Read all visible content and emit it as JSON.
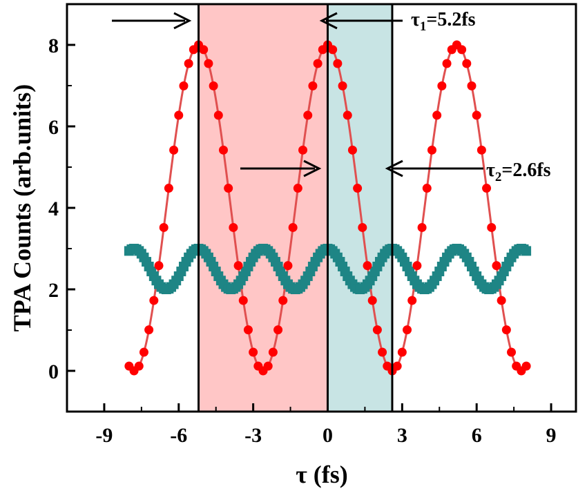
{
  "chart_data": {
    "type": "scatter",
    "xlabel": "τ (fs)",
    "ylabel": "TPA Counts (arb.units)",
    "xlim": [
      -10.5,
      10
    ],
    "ylim": [
      -1,
      9
    ],
    "xticks": [
      -9,
      -6,
      -3,
      0,
      3,
      6,
      9
    ],
    "xtick_labels": [
      "-9",
      "-6",
      "-3",
      "0",
      "3",
      "6",
      "9"
    ],
    "yticks": [
      0,
      2,
      4,
      6,
      8
    ],
    "ytick_labels": [
      "0",
      "2",
      "4",
      "6",
      "8"
    ],
    "grid": false,
    "series": [
      {
        "marker": "circle",
        "color": "#ff0000",
        "line_color": "#e05050",
        "period_fs": 5.2,
        "x_range": [
          -8,
          8
        ],
        "y_range": [
          0,
          8
        ],
        "step_fs": 0.2
      },
      {
        "marker": "square",
        "color": "#1e8585",
        "period_fs": 2.6,
        "x_range": [
          -8,
          8
        ],
        "y_range": [
          2,
          3
        ],
        "step_fs": 0.1
      }
    ],
    "shaded_regions": [
      {
        "x": [
          -5.2,
          0
        ],
        "color": "#ffc6c6"
      },
      {
        "x": [
          0,
          2.6
        ],
        "color": "#c8e4e4"
      }
    ],
    "vertical_lines": [
      -5.2,
      0,
      2.6
    ],
    "annotations": [
      {
        "sym": "τ",
        "sub": "1",
        "text": "=5.2fs"
      },
      {
        "sym": "τ",
        "sub": "2",
        "text": "=2.6fs"
      }
    ]
  }
}
